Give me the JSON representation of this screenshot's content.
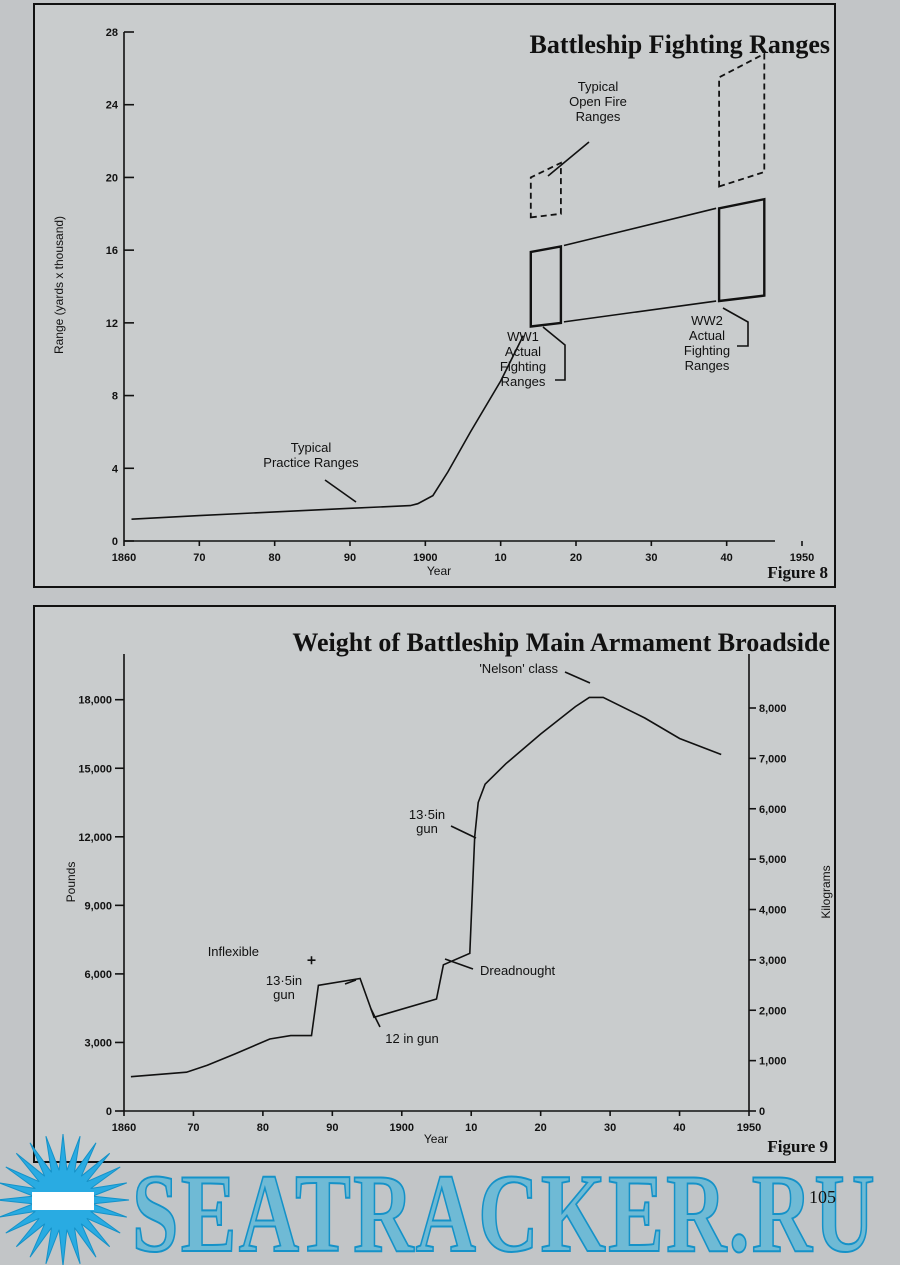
{
  "page_number": "105",
  "watermark_text": "SEATRACKER.RU",
  "colors": {
    "background": "#c2c5c7",
    "panel": "#c9cccd",
    "ink": "#111111",
    "watermark": "#2bb0e0"
  },
  "chart_data": [
    {
      "type": "line",
      "title": "Battleship Fighting Ranges",
      "figure_label": "Figure 8",
      "xlabel": "Year",
      "ylabel": "Range (yards x thousand)",
      "xlim": [
        1860,
        1950
      ],
      "ylim": [
        0,
        28
      ],
      "x_ticks": [
        1860,
        1870,
        1880,
        1890,
        1900,
        1910,
        1920,
        1930,
        1940,
        1950
      ],
      "x_tick_labels": [
        "1860",
        "70",
        "80",
        "90",
        "1900",
        "10",
        "20",
        "30",
        "40",
        "1950"
      ],
      "y_ticks": [
        0,
        4,
        8,
        12,
        16,
        20,
        24,
        28
      ],
      "y_tick_labels": [
        "0",
        "4",
        "8",
        "12",
        "16",
        "20",
        "24",
        "28"
      ],
      "grid": false,
      "series": [
        {
          "name": "Typical Practice Ranges",
          "x": [
            1861,
            1870,
            1880,
            1890,
            1898,
            1899,
            1901,
            1903,
            1906,
            1910,
            1913
          ],
          "y": [
            1.2,
            1.4,
            1.6,
            1.8,
            1.95,
            2.05,
            2.5,
            3.8,
            6.0,
            8.8,
            11.3
          ]
        }
      ],
      "ranges": [
        {
          "label": "WW1 Actual Fighting Ranges",
          "style": "solid",
          "x": [
            1914,
            1918
          ],
          "y_low": [
            11.8,
            12.0
          ],
          "y_high": [
            15.9,
            16.2
          ]
        },
        {
          "label": "WW2 Actual Fighting Ranges",
          "style": "solid",
          "x": [
            1939,
            1945
          ],
          "y_low": [
            13.2,
            13.5
          ],
          "y_high": [
            18.3,
            18.8
          ]
        },
        {
          "label": "Typical Open Fire Ranges",
          "style": "dashed",
          "x": [
            1914,
            1918
          ],
          "y_low": [
            17.8,
            18.0
          ],
          "y_high": [
            20.0,
            20.8
          ]
        },
        {
          "label": "Typical Open Fire Ranges",
          "style": "dashed",
          "x": [
            1939,
            1945
          ],
          "y_low": [
            19.5,
            20.3
          ],
          "y_high": [
            25.5,
            26.8
          ]
        }
      ],
      "annotations": [
        {
          "id": "practice",
          "lines": [
            "Typical",
            "Practice Ranges"
          ]
        },
        {
          "id": "open_fire",
          "lines": [
            "Typical",
            "Open Fire",
            "Ranges"
          ]
        },
        {
          "id": "ww1",
          "lines": [
            "WW1",
            "Actual",
            "Fighting",
            "Ranges"
          ]
        },
        {
          "id": "ww2",
          "lines": [
            "WW2",
            "Actual",
            "Fighting",
            "Ranges"
          ]
        }
      ]
    },
    {
      "type": "line",
      "title": "Weight of Battleship Main Armament Broadside",
      "figure_label": "Figure 9",
      "xlabel": "Year",
      "ylabel": "Pounds",
      "y2label": "Kilograms",
      "xlim": [
        1860,
        1950
      ],
      "ylim": [
        0,
        20000
      ],
      "y2lim": [
        0,
        9072
      ],
      "x_ticks": [
        1860,
        1870,
        1880,
        1890,
        1900,
        1910,
        1920,
        1930,
        1940,
        1950
      ],
      "x_tick_labels": [
        "1860",
        "70",
        "80",
        "90",
        "1900",
        "10",
        "20",
        "30",
        "40",
        "1950"
      ],
      "y_ticks": [
        0,
        3000,
        6000,
        9000,
        12000,
        15000,
        18000
      ],
      "y_tick_labels": [
        "0",
        "3,000",
        "6,000",
        "9,000",
        "12,000",
        "15,000",
        "18,000"
      ],
      "y2_ticks": [
        0,
        1000,
        2000,
        3000,
        4000,
        5000,
        6000,
        7000,
        8000
      ],
      "y2_tick_labels": [
        "0",
        "1,000",
        "2,000",
        "3,000",
        "4,000",
        "5,000",
        "6,000",
        "7,000",
        "8,000"
      ],
      "grid": false,
      "series": [
        {
          "name": "",
          "x": [
            1861,
            1869,
            1872,
            1876,
            1881,
            1884,
            1887,
            1888,
            1894,
            1896,
            1905,
            1906,
            1909.8,
            1910.5,
            1911,
            1912,
            1915,
            1920,
            1925,
            1927,
            1929,
            1935,
            1940,
            1946
          ],
          "y": [
            1500,
            1700,
            2000,
            2500,
            3150,
            3300,
            3300,
            5500,
            5800,
            4100,
            4900,
            6400,
            6900,
            12000,
            13500,
            14300,
            15200,
            16500,
            17700,
            18100,
            18100,
            17200,
            16300,
            15600
          ]
        }
      ],
      "points": [
        {
          "label": "Inflexible",
          "x": 1887,
          "y": 6600
        }
      ],
      "annotations": [
        {
          "id": "nelson",
          "lines": [
            "'Nelson' class"
          ]
        },
        {
          "id": "gun135_upper",
          "lines": [
            "13·5in",
            "gun"
          ]
        },
        {
          "id": "gun135_lower",
          "lines": [
            "13·5in",
            "gun"
          ]
        },
        {
          "id": "gun12",
          "lines": [
            "12 in gun"
          ]
        },
        {
          "id": "dreadnought",
          "lines": [
            "Dreadnought"
          ]
        },
        {
          "id": "inflexible",
          "lines": [
            "Inflexible"
          ]
        }
      ]
    }
  ]
}
